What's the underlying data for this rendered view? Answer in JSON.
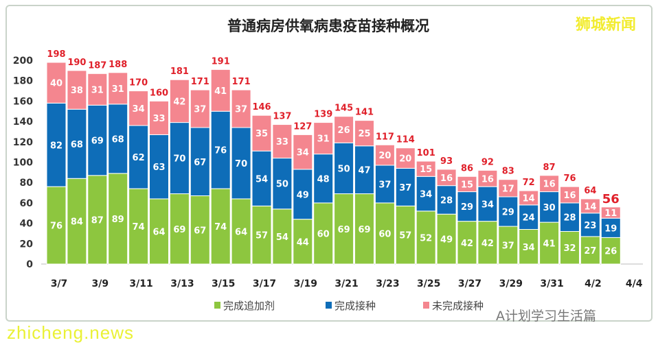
{
  "chart_data": {
    "type": "bar",
    "stacked": true,
    "title": "普通病房供氧病患疫苗接种概况",
    "categories": [
      "3/7",
      "3/8",
      "3/9",
      "3/10",
      "3/11",
      "3/12",
      "3/13",
      "3/14",
      "3/15",
      "3/16",
      "3/17",
      "3/18",
      "3/19",
      "3/20",
      "3/21",
      "3/22",
      "3/23",
      "3/24",
      "3/25",
      "3/26",
      "3/27",
      "3/28",
      "3/29",
      "3/30",
      "3/31",
      "4/1",
      "4/2",
      "4/3"
    ],
    "x_tick_labels": [
      "3/7",
      "3/9",
      "3/11",
      "3/13",
      "3/15",
      "3/17",
      "3/19",
      "3/21",
      "3/23",
      "3/25",
      "3/27",
      "3/29",
      "3/31",
      "4/2",
      "4/4"
    ],
    "series": [
      {
        "name": "完成追加剂",
        "color": "#8dc63f",
        "values": [
          76,
          84,
          87,
          89,
          74,
          64,
          69,
          67,
          74,
          64,
          57,
          54,
          44,
          60,
          69,
          69,
          60,
          57,
          52,
          49,
          42,
          42,
          37,
          34,
          41,
          32,
          27,
          26
        ]
      },
      {
        "name": "完成接种",
        "color": "#0e6db8",
        "values": [
          82,
          68,
          69,
          68,
          62,
          63,
          70,
          67,
          76,
          70,
          54,
          50,
          49,
          48,
          50,
          47,
          37,
          37,
          34,
          28,
          29,
          34,
          29,
          24,
          30,
          28,
          23,
          19
        ]
      },
      {
        "name": "未完成接种",
        "color": "#f4868f",
        "values": [
          40,
          38,
          31,
          31,
          34,
          33,
          42,
          37,
          41,
          37,
          35,
          33,
          34,
          31,
          26,
          25,
          20,
          20,
          15,
          16,
          15,
          16,
          17,
          14,
          16,
          16,
          14,
          11
        ]
      }
    ],
    "totals": [
      198,
      190,
      187,
      188,
      170,
      160,
      181,
      171,
      191,
      171,
      146,
      137,
      127,
      139,
      145,
      141,
      117,
      114,
      101,
      93,
      86,
      92,
      83,
      72,
      87,
      76,
      64,
      56
    ],
    "total_label_color": "#e0202a",
    "ylim": [
      0,
      200
    ],
    "yticks": [
      0,
      20,
      40,
      60,
      80,
      100,
      120,
      140,
      160,
      180,
      200
    ],
    "grid": false,
    "legend": "bottom"
  },
  "branding": {
    "logo": "狮城新闻",
    "watermark": "zhicheng.news",
    "account": "A计划学习生活篇"
  }
}
